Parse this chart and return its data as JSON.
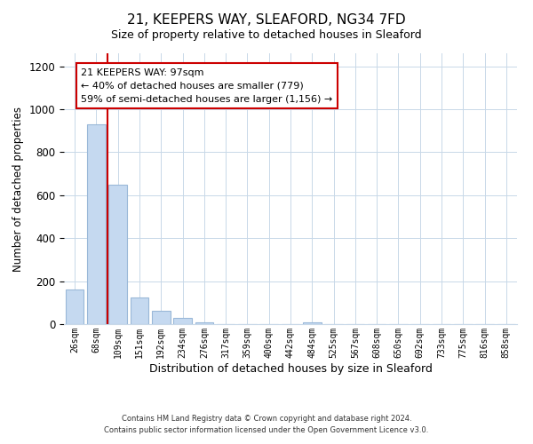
{
  "title": "21, KEEPERS WAY, SLEAFORD, NG34 7FD",
  "subtitle": "Size of property relative to detached houses in Sleaford",
  "xlabel": "Distribution of detached houses by size in Sleaford",
  "ylabel": "Number of detached properties",
  "bar_labels": [
    "26sqm",
    "68sqm",
    "109sqm",
    "151sqm",
    "192sqm",
    "234sqm",
    "276sqm",
    "317sqm",
    "359sqm",
    "400sqm",
    "442sqm",
    "484sqm",
    "525sqm",
    "567sqm",
    "608sqm",
    "650sqm",
    "692sqm",
    "733sqm",
    "775sqm",
    "816sqm",
    "858sqm"
  ],
  "bar_heights": [
    160,
    930,
    650,
    125,
    60,
    28,
    10,
    0,
    0,
    0,
    0,
    10,
    0,
    0,
    0,
    0,
    0,
    0,
    0,
    0,
    0
  ],
  "bar_color": "#c5d9f0",
  "bar_edge_color": "#9ab8d8",
  "ylim": [
    0,
    1260
  ],
  "yticks": [
    0,
    200,
    400,
    600,
    800,
    1000,
    1200
  ],
  "property_line_x": 1.5,
  "property_line_color": "#cc0000",
  "annotation_title": "21 KEEPERS WAY: 97sqm",
  "annotation_line1": "← 40% of detached houses are smaller (779)",
  "annotation_line2": "59% of semi-detached houses are larger (1,156) →",
  "annotation_box_color": "#ffffff",
  "annotation_box_edge": "#cc0000",
  "footer1": "Contains HM Land Registry data © Crown copyright and database right 2024.",
  "footer2": "Contains public sector information licensed under the Open Government Licence v3.0.",
  "background_color": "#ffffff",
  "grid_color": "#c8d8e8",
  "title_fontsize": 11,
  "subtitle_fontsize": 9
}
